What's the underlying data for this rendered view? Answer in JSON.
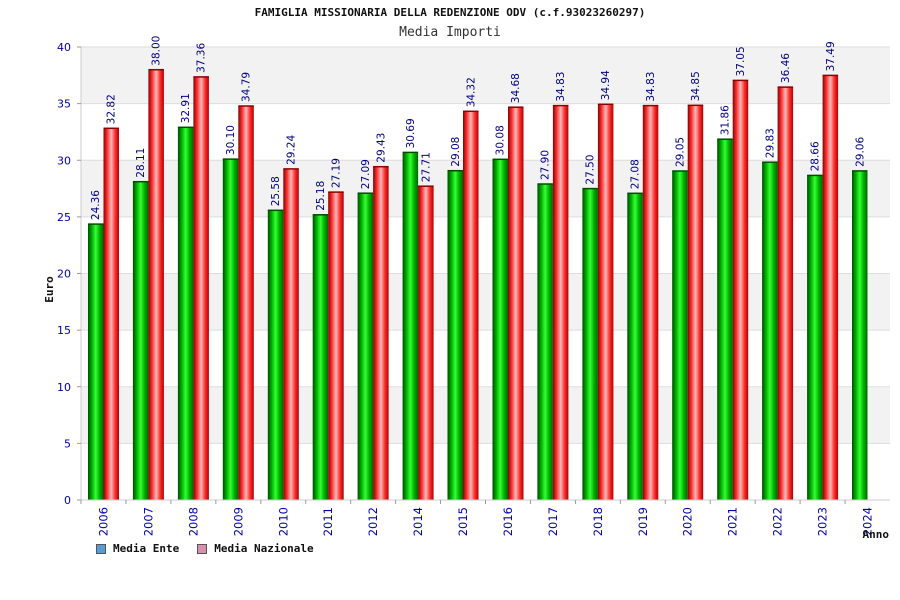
{
  "chart_data": {
    "type": "bar",
    "title": "FAMIGLIA MISSIONARIA DELLA REDENZIONE ODV (c.f.93023260297)",
    "subtitle": "Media Importi",
    "ylabel": "Euro",
    "xlabel": "Anno",
    "ylim": [
      0,
      40
    ],
    "yticks": [
      0,
      5,
      10,
      15,
      20,
      25,
      30,
      35,
      40
    ],
    "grid": true,
    "legend_position": "bottom-left",
    "categories": [
      "2006",
      "2007",
      "2008",
      "2009",
      "2010",
      "2011",
      "2012",
      "2014",
      "2015",
      "2016",
      "2017",
      "2018",
      "2019",
      "2020",
      "2021",
      "2022",
      "2023",
      "2024"
    ],
    "series": [
      {
        "name": "Media Ente",
        "color": "#00a000",
        "legend_color": "#5b9bd5",
        "values": [
          24.36,
          28.11,
          32.91,
          30.1,
          25.58,
          25.18,
          27.09,
          30.69,
          29.08,
          30.08,
          27.9,
          27.5,
          27.08,
          29.05,
          31.86,
          29.83,
          28.66,
          29.06
        ],
        "labels": [
          "24.36",
          "28.11",
          "32.91",
          "30.10",
          "25.58",
          "25.18",
          "27.09",
          "30.69",
          "29.08",
          "30.08",
          "27.90",
          "27.50",
          "27.08",
          "29.05",
          "31.86",
          "29.83",
          "28.66",
          "29.06"
        ]
      },
      {
        "name": "Media Nazionale",
        "color": "#e82020",
        "legend_color": "#d98fb0",
        "values": [
          32.82,
          38.0,
          37.36,
          34.79,
          29.24,
          27.19,
          29.43,
          27.71,
          34.32,
          34.68,
          34.83,
          34.94,
          34.83,
          34.85,
          37.05,
          36.46,
          37.49,
          null
        ],
        "labels": [
          "32.82",
          "38.00",
          "37.36",
          "34.79",
          "29.24",
          "27.19",
          "29.43",
          "27.71",
          "34.32",
          "34.68",
          "34.83",
          "34.94",
          "34.83",
          "34.85",
          "37.05",
          "36.46",
          "37.49",
          ""
        ]
      }
    ],
    "colors": {
      "axis_text": "#0000aa",
      "label_text": "#000080",
      "grid_band": "#f2f2f2",
      "grid_line": "#dddddd"
    }
  }
}
